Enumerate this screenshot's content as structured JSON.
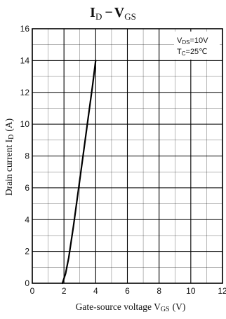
{
  "chart_data": {
    "type": "line",
    "title": {
      "main_left": "I",
      "sub_left": "D",
      "dash": "−",
      "main_right": "V",
      "sub_right": "GS"
    },
    "xlabel": {
      "prefix": "Gate-source voltage V",
      "sub": "GS",
      "suffix": "(V)"
    },
    "ylabel": {
      "prefix": "Drain current I",
      "sub": "D",
      "suffix": "(A)"
    },
    "xlim": [
      0,
      12
    ],
    "ylim": [
      0,
      16
    ],
    "x_ticks": [
      0,
      2,
      4,
      6,
      8,
      10,
      12
    ],
    "y_ticks": [
      0,
      2,
      4,
      6,
      8,
      10,
      12,
      14,
      16
    ],
    "x_tick_labels": [
      "0",
      "2",
      "4",
      "6",
      "8",
      "10",
      "12"
    ],
    "y_tick_labels": [
      "0",
      "2",
      "4",
      "6",
      "8",
      "10",
      "12",
      "14",
      "16"
    ],
    "grid": true,
    "grid_minor_x_step": 1,
    "grid_minor_y_step": 1,
    "legend_position": "top-right",
    "conditions": [
      {
        "main": "V",
        "sub": "DS",
        "value": "=10V"
      },
      {
        "main": "T",
        "sub": "C",
        "value": "=25℃"
      }
    ],
    "series": [
      {
        "x": [
          1.9,
          2.1,
          2.3,
          2.6,
          2.9,
          3.2,
          3.5,
          3.8,
          4.0
        ],
        "y": [
          0.0,
          0.6,
          1.6,
          3.6,
          5.8,
          8.0,
          10.2,
          12.4,
          14.0
        ]
      }
    ],
    "colors": {
      "line": "#000000",
      "grid": "#000000",
      "text": "#111111"
    }
  }
}
